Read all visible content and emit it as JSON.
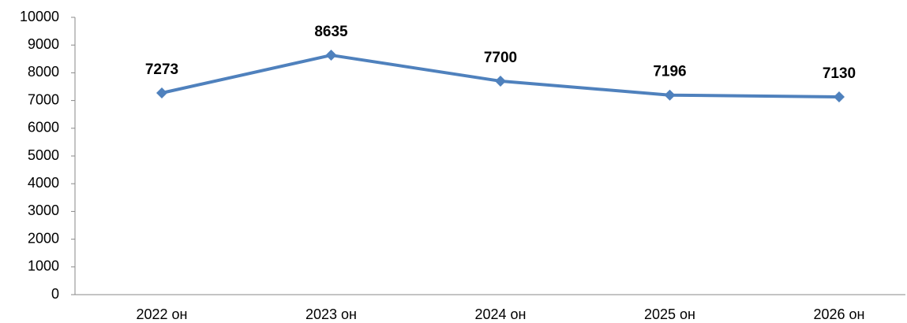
{
  "chart_data": {
    "type": "line",
    "categories": [
      "2022 он",
      "2023 он",
      "2024 он",
      "2025 он",
      "2026 он"
    ],
    "series": [
      {
        "color": "#4f81bd",
        "values": [
          7273,
          8635,
          7700,
          7196,
          7130
        ]
      }
    ],
    "ylim": [
      0,
      10000
    ],
    "yticks": [
      0,
      1000,
      2000,
      3000,
      4000,
      5000,
      6000,
      7000,
      8000,
      9000,
      10000
    ],
    "grid": false
  }
}
